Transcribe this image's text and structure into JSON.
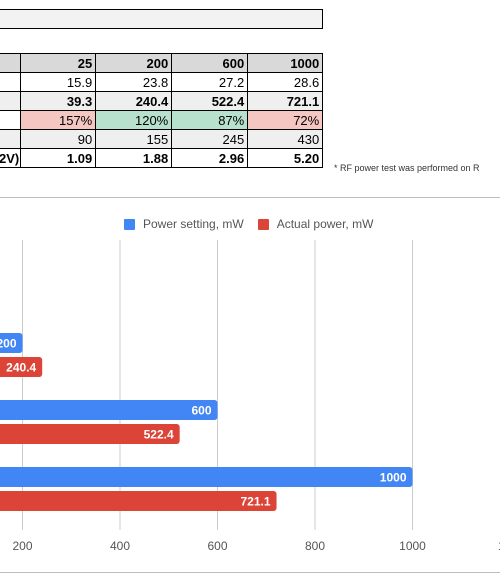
{
  "table": {
    "header": [
      "",
      "25",
      "200",
      "600",
      "1000"
    ],
    "rows": [
      {
        "cells": [
          "",
          "15.9",
          "23.8",
          "27.2",
          "28.6"
        ]
      },
      {
        "cells": [
          "",
          "39.3",
          "240.4",
          "522.4",
          "721.1"
        ]
      },
      {
        "cells": [
          "",
          "157%",
          "120%",
          "87%",
          "72%"
        ],
        "colors": [
          "",
          "#f4c7c3",
          "#b7e1cd",
          "#b7e1cd",
          "#f4c7c3"
        ]
      },
      {
        "cells": [
          "",
          "90",
          "155",
          "245",
          "430"
        ]
      },
      {
        "cells": [
          "2V)",
          "1.09",
          "1.88",
          "2.96",
          "5.20"
        ]
      }
    ]
  },
  "note": "* RF power test was performed on R",
  "chart_data": {
    "type": "bar",
    "orientation": "horizontal",
    "categories": [
      "",
      "",
      ""
    ],
    "series": [
      {
        "name": "Power setting, mW",
        "color": "#4285f4",
        "values": [
          200,
          600,
          1000
        ]
      },
      {
        "name": "Actual power, mW",
        "color": "#db4437",
        "values": [
          240.4,
          522.4,
          721.1
        ]
      }
    ],
    "xticks": [
      200,
      400,
      600,
      800,
      1000
    ],
    "xlim": [
      0,
      1200
    ],
    "grid": true,
    "legend": "top"
  }
}
